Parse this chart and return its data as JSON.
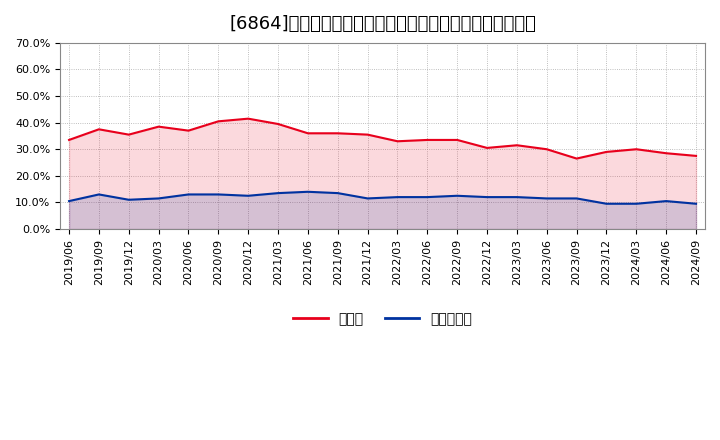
{
  "title": "[6864]　現預金、有利子負債の総資産に対する比率の推移",
  "x_labels": [
    "2019/06",
    "2019/09",
    "2019/12",
    "2020/03",
    "2020/06",
    "2020/09",
    "2020/12",
    "2021/03",
    "2021/06",
    "2021/09",
    "2021/12",
    "2022/03",
    "2022/06",
    "2022/09",
    "2022/12",
    "2023/03",
    "2023/06",
    "2023/09",
    "2023/12",
    "2024/03",
    "2024/06",
    "2024/09"
  ],
  "cash_ratio": [
    33.5,
    37.5,
    35.5,
    38.5,
    37.0,
    40.5,
    41.5,
    39.5,
    36.0,
    36.0,
    35.5,
    33.0,
    33.5,
    33.5,
    30.5,
    31.5,
    30.0,
    26.5,
    29.0,
    30.0,
    28.5,
    27.5
  ],
  "debt_ratio": [
    10.5,
    13.0,
    11.0,
    11.5,
    13.0,
    13.0,
    12.5,
    13.5,
    14.0,
    13.5,
    11.5,
    12.0,
    12.0,
    12.5,
    12.0,
    12.0,
    11.5,
    11.5,
    9.5,
    9.5,
    10.5,
    9.5
  ],
  "cash_color": "#e8001c",
  "debt_color": "#0032a0",
  "background_color": "#ffffff",
  "plot_bg_color": "#ffffff",
  "grid_color": "#aaaaaa",
  "ylim": [
    0,
    70
  ],
  "yticks": [
    0,
    10,
    20,
    30,
    40,
    50,
    60,
    70
  ],
  "legend_cash": "現預金",
  "legend_debt": "有利子負債",
  "title_fontsize": 13,
  "axis_fontsize": 8,
  "legend_fontsize": 10
}
